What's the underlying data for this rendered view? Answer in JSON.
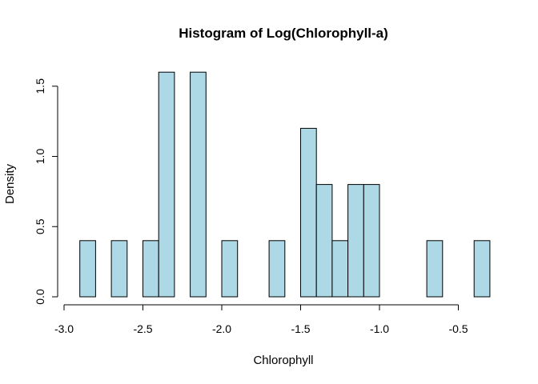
{
  "chart_data": {
    "type": "bar",
    "subtype": "histogram",
    "title": "Histogram of Log(Chlorophyll-a)",
    "xlabel": "Chlorophyll",
    "ylabel": "Density",
    "bar_color": "#add8e6",
    "xlim": [
      -3.0,
      -0.3
    ],
    "ylim": [
      0,
      1.6
    ],
    "bin_width": 0.1,
    "x_ticks": [
      {
        "value": -3.0,
        "label": "-3.0"
      },
      {
        "value": -2.5,
        "label": "-2.5"
      },
      {
        "value": -2.0,
        "label": "-2.0"
      },
      {
        "value": -1.5,
        "label": "-1.5"
      },
      {
        "value": -1.0,
        "label": "-1.0"
      },
      {
        "value": -0.5,
        "label": "-0.5"
      }
    ],
    "y_ticks": [
      {
        "value": 0.0,
        "label": "0.0"
      },
      {
        "value": 0.5,
        "label": "0.5"
      },
      {
        "value": 1.0,
        "label": "1.0"
      },
      {
        "value": 1.5,
        "label": "1.5"
      }
    ],
    "bins": [
      {
        "start": -2.9,
        "end": -2.8,
        "density": 0.4
      },
      {
        "start": -2.8,
        "end": -2.7,
        "density": 0.0
      },
      {
        "start": -2.7,
        "end": -2.6,
        "density": 0.4
      },
      {
        "start": -2.6,
        "end": -2.5,
        "density": 0.0
      },
      {
        "start": -2.5,
        "end": -2.4,
        "density": 0.4
      },
      {
        "start": -2.4,
        "end": -2.3,
        "density": 1.6
      },
      {
        "start": -2.3,
        "end": -2.2,
        "density": 0.0
      },
      {
        "start": -2.2,
        "end": -2.1,
        "density": 1.6
      },
      {
        "start": -2.1,
        "end": -2.0,
        "density": 0.0
      },
      {
        "start": -2.0,
        "end": -1.9,
        "density": 0.4
      },
      {
        "start": -1.9,
        "end": -1.8,
        "density": 0.0
      },
      {
        "start": -1.8,
        "end": -1.7,
        "density": 0.0
      },
      {
        "start": -1.7,
        "end": -1.6,
        "density": 0.4
      },
      {
        "start": -1.6,
        "end": -1.5,
        "density": 0.0
      },
      {
        "start": -1.5,
        "end": -1.4,
        "density": 1.2
      },
      {
        "start": -1.4,
        "end": -1.3,
        "density": 0.8
      },
      {
        "start": -1.3,
        "end": -1.2,
        "density": 0.4
      },
      {
        "start": -1.2,
        "end": -1.1,
        "density": 0.8
      },
      {
        "start": -1.1,
        "end": -1.0,
        "density": 0.8
      },
      {
        "start": -1.0,
        "end": -0.9,
        "density": 0.0
      },
      {
        "start": -0.9,
        "end": -0.8,
        "density": 0.0
      },
      {
        "start": -0.8,
        "end": -0.7,
        "density": 0.0
      },
      {
        "start": -0.7,
        "end": -0.6,
        "density": 0.4
      },
      {
        "start": -0.6,
        "end": -0.5,
        "density": 0.0
      },
      {
        "start": -0.5,
        "end": -0.4,
        "density": 0.0
      },
      {
        "start": -0.4,
        "end": -0.3,
        "density": 0.4
      }
    ]
  }
}
